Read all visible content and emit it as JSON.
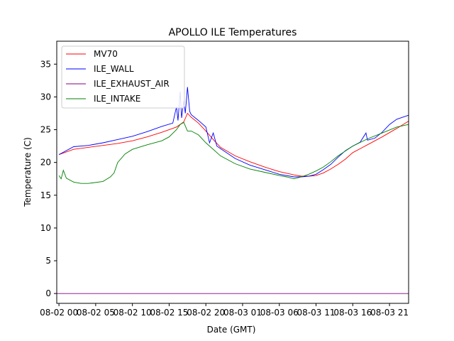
{
  "chart_data": {
    "type": "line",
    "title": "APOLLO ILE Temperatures",
    "xlabel": "Date (GMT)",
    "ylabel": "Temperature (C)",
    "xlim": [
      -0.3,
      47.6
    ],
    "ylim": [
      -1.5,
      38.5
    ],
    "x_unit": "hours since 08-02 00:00 GMT",
    "x_ticks": [
      0,
      5,
      10,
      15,
      20,
      25,
      30,
      35,
      40,
      45
    ],
    "x_tick_labels": [
      "08-02 00",
      "08-02 05",
      "08-02 10",
      "08-02 15",
      "08-02 20",
      "08-03 01",
      "08-03 06",
      "08-03 11",
      "08-03 16",
      "08-03 21"
    ],
    "y_ticks": [
      0,
      5,
      10,
      15,
      20,
      25,
      30,
      35
    ],
    "y_tick_labels": [
      "0",
      "5",
      "10",
      "15",
      "20",
      "25",
      "30",
      "35"
    ],
    "grid": false,
    "legend_position": "top-left",
    "series": [
      {
        "name": "MV70",
        "color": "#ff0000",
        "x": [
          0,
          2,
          4,
          6,
          8,
          10,
          12,
          14,
          16,
          17,
          17.5,
          18,
          19,
          20,
          21,
          22,
          24,
          26,
          28,
          30,
          32,
          33,
          34,
          35,
          36,
          37,
          38,
          39,
          40,
          42,
          44,
          46,
          47.6
        ],
        "y": [
          21.2,
          22.0,
          22.3,
          22.6,
          22.9,
          23.3,
          23.9,
          24.6,
          25.4,
          26.2,
          27.5,
          26.9,
          26.0,
          24.8,
          23.5,
          22.3,
          21.0,
          20.1,
          19.3,
          18.6,
          18.1,
          17.9,
          17.9,
          18.0,
          18.4,
          19.0,
          19.7,
          20.5,
          21.5,
          22.7,
          23.9,
          25.2,
          26.3
        ]
      },
      {
        "name": "ILE_WALL",
        "color": "#0000ff",
        "x": [
          0,
          2,
          4,
          6,
          8,
          10,
          12,
          14,
          15.5,
          16,
          16.2,
          16.5,
          16.7,
          17,
          17.2,
          17.5,
          17.8,
          18,
          19,
          20,
          20.5,
          21,
          21.5,
          22,
          24,
          26,
          28,
          30,
          32,
          33,
          34,
          35,
          36,
          37,
          38,
          39,
          40,
          41,
          41.8,
          42,
          43,
          44,
          45,
          46,
          47.6
        ],
        "y": [
          21.2,
          22.4,
          22.6,
          23.0,
          23.5,
          24.0,
          24.7,
          25.5,
          26.0,
          28.5,
          26.4,
          30.8,
          26.8,
          29.4,
          27.5,
          31.5,
          27.8,
          27.3,
          26.4,
          25.4,
          23.0,
          24.5,
          22.5,
          22.1,
          20.6,
          19.6,
          18.9,
          18.2,
          17.8,
          17.8,
          17.9,
          18.2,
          18.9,
          19.7,
          20.8,
          21.8,
          22.5,
          23.1,
          24.5,
          23.4,
          23.7,
          24.6,
          25.8,
          26.6,
          27.2
        ]
      },
      {
        "name": "ILE_EXHAUST_AIR",
        "color": "#800080",
        "x": [
          -0.3,
          47.6
        ],
        "y": [
          0,
          0
        ]
      },
      {
        "name": "ILE_INTAKE",
        "color": "#008000",
        "x": [
          0,
          0.3,
          0.6,
          1,
          2,
          3,
          4,
          6,
          7,
          7.5,
          8,
          9,
          10,
          12,
          14,
          15,
          16,
          16.5,
          17,
          17.5,
          18,
          19,
          20,
          22,
          24,
          26,
          28,
          30,
          31,
          32,
          33,
          34,
          35,
          36,
          37,
          38,
          40,
          42,
          44,
          46,
          47.6
        ],
        "y": [
          18.0,
          17.5,
          18.8,
          17.6,
          17.0,
          16.8,
          16.8,
          17.1,
          17.8,
          18.4,
          20.0,
          21.3,
          22.0,
          22.7,
          23.3,
          23.9,
          25.0,
          25.8,
          26.1,
          24.8,
          24.8,
          24.2,
          23.0,
          21.0,
          19.8,
          19.0,
          18.5,
          18.0,
          17.8,
          17.5,
          17.8,
          18.2,
          18.7,
          19.3,
          20.1,
          21.0,
          22.5,
          23.6,
          24.5,
          25.4,
          25.8
        ]
      }
    ]
  }
}
